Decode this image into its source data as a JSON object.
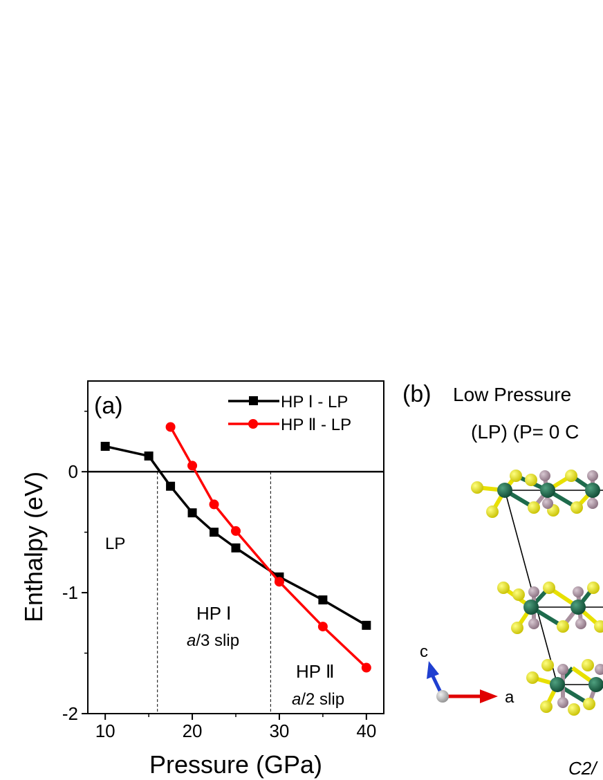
{
  "panel_a": {
    "label": "(a)",
    "region_labels": {
      "lp": "LP",
      "hp1_name": "HP Ⅰ",
      "hp1_slip_italic": "a",
      "hp1_slip_rest": "/3 slip",
      "hp2_name": "HP Ⅱ",
      "hp2_slip_italic": "a",
      "hp2_slip_rest": "/2 slip"
    }
  },
  "chart_data": {
    "type": "line",
    "title": "",
    "xlabel": "Pressure (GPa)",
    "ylabel": "Enthalpy (eV)",
    "xlim": [
      8,
      42
    ],
    "ylim": [
      -2,
      0.75
    ],
    "xticks": [
      10,
      20,
      30,
      40
    ],
    "xtick_labels": [
      "10",
      "20",
      "30",
      "40"
    ],
    "yticks": [
      -2,
      -1,
      0
    ],
    "ytick_labels": [
      "-2",
      "-1",
      "0"
    ],
    "reference_line_y": 0,
    "boundaries_x": [
      16,
      29
    ],
    "legend_position": "top-right",
    "series": [
      {
        "name": "HP Ⅰ - LP",
        "color": "#000000",
        "marker": "square",
        "x": [
          10,
          15,
          17.5,
          20,
          22.5,
          25,
          30,
          35,
          40
        ],
        "y": [
          0.21,
          0.13,
          -0.12,
          -0.34,
          -0.5,
          -0.63,
          -0.87,
          -1.06,
          -1.27
        ]
      },
      {
        "name": "HP Ⅱ - LP",
        "color": "#ff0000",
        "marker": "circle",
        "x": [
          17.5,
          20,
          22.5,
          25,
          30,
          35,
          40
        ],
        "y": [
          0.37,
          0.05,
          -0.27,
          -0.49,
          -0.91,
          -1.28,
          -1.62
        ]
      }
    ]
  },
  "panel_b": {
    "label": "(b)",
    "title_line1": "Low Pressure",
    "title_line2": "(LP)  (P= 0 C",
    "axis_c": "c",
    "axis_a": "a",
    "space_group": "C2/",
    "atom_colors": {
      "green": "#1e6b4c",
      "yellow": "#e8e000",
      "mauve": "#a8909e",
      "gray": "#bbbbbb",
      "axis_red": "#e00000",
      "axis_blue": "#1f3fd0"
    }
  }
}
